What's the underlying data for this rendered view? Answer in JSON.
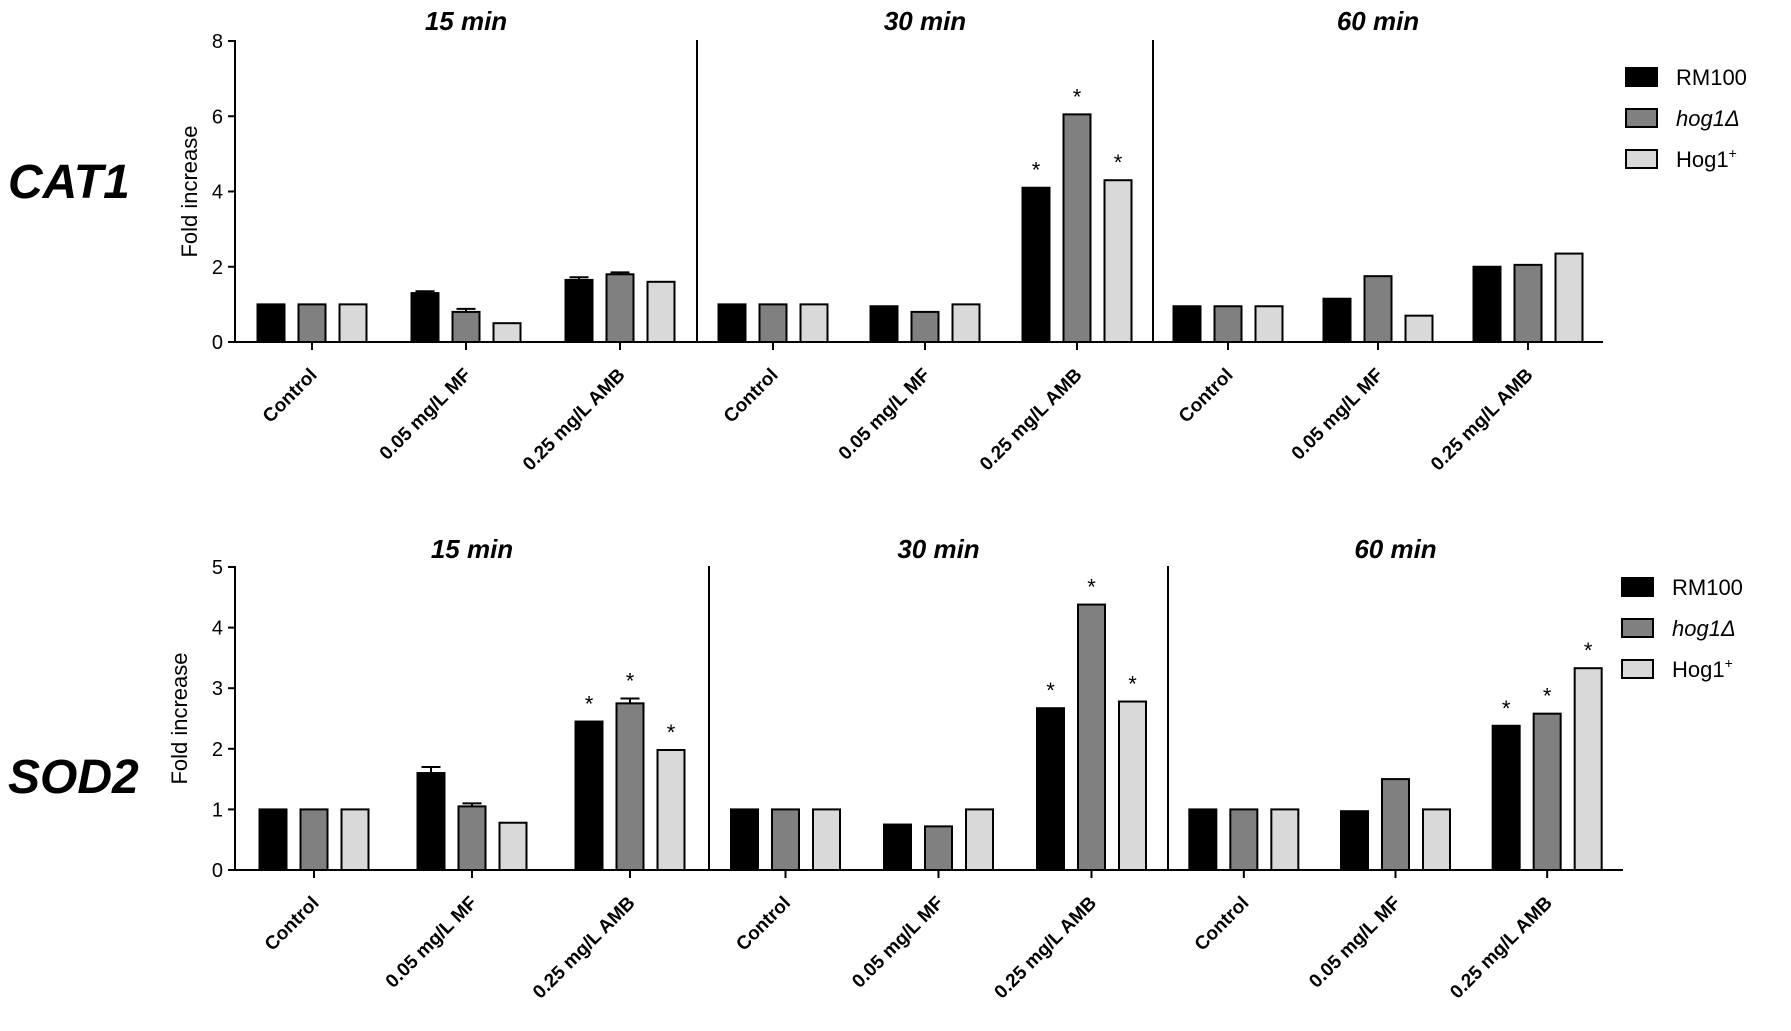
{
  "legend": [
    {
      "name": "RM100",
      "italic": false,
      "sup": "",
      "color": "#000000"
    },
    {
      "name": "hog1Δ",
      "italic": true,
      "sup": "",
      "color": "#808080"
    },
    {
      "name": "Hog1",
      "italic": false,
      "sup": "+",
      "color": "#d9d9d9"
    }
  ],
  "chart_data": [
    {
      "type": "bar",
      "gene": "CAT1",
      "ylabel": "Fold increase",
      "ylim": [
        0,
        8
      ],
      "yticks": [
        0,
        2,
        4,
        6,
        8
      ],
      "categories": [
        "Control",
        "0.05 mg/L MF",
        "0.25 mg/L AMB"
      ],
      "panels": [
        {
          "title": "15 min",
          "series": [
            {
              "name": "RM100",
              "values": [
                1.0,
                1.3,
                1.65
              ],
              "errors": [
                0,
                0.05,
                0.07
              ],
              "sig": [
                false,
                false,
                false
              ]
            },
            {
              "name": "hog1Δ",
              "values": [
                1.0,
                0.8,
                1.8
              ],
              "errors": [
                0,
                0.08,
                0.05
              ],
              "sig": [
                false,
                false,
                false
              ]
            },
            {
              "name": "Hog1+",
              "values": [
                1.0,
                0.5,
                1.6
              ],
              "errors": [
                0,
                0,
                0
              ],
              "sig": [
                false,
                false,
                false
              ]
            }
          ]
        },
        {
          "title": "30 min",
          "series": [
            {
              "name": "RM100",
              "values": [
                1.0,
                0.95,
                4.1
              ],
              "errors": [
                0,
                0,
                0
              ],
              "sig": [
                false,
                false,
                true
              ]
            },
            {
              "name": "hog1Δ",
              "values": [
                1.0,
                0.8,
                6.05
              ],
              "errors": [
                0,
                0,
                0
              ],
              "sig": [
                false,
                false,
                true
              ]
            },
            {
              "name": "Hog1+",
              "values": [
                1.0,
                1.0,
                4.3
              ],
              "errors": [
                0,
                0,
                0
              ],
              "sig": [
                false,
                false,
                true
              ]
            }
          ]
        },
        {
          "title": "60 min",
          "series": [
            {
              "name": "RM100",
              "values": [
                0.95,
                1.15,
                2.0
              ],
              "errors": [
                0,
                0,
                0
              ],
              "sig": [
                false,
                false,
                false
              ]
            },
            {
              "name": "hog1Δ",
              "values": [
                0.95,
                1.75,
                2.05
              ],
              "errors": [
                0,
                0,
                0
              ],
              "sig": [
                false,
                false,
                false
              ]
            },
            {
              "name": "Hog1+",
              "values": [
                0.95,
                0.7,
                2.35
              ],
              "errors": [
                0,
                0,
                0
              ],
              "sig": [
                false,
                false,
                false
              ]
            }
          ]
        }
      ]
    },
    {
      "type": "bar",
      "gene": "SOD2",
      "ylabel": "Fold increase",
      "ylim": [
        0,
        5
      ],
      "yticks": [
        0,
        1,
        2,
        3,
        4,
        5
      ],
      "categories": [
        "Control",
        "0.05 mg/L MF",
        "0.25 mg/L AMB"
      ],
      "panels": [
        {
          "title": "15 min",
          "series": [
            {
              "name": "RM100",
              "values": [
                1.0,
                1.6,
                2.45
              ],
              "errors": [
                0,
                0.1,
                0
              ],
              "sig": [
                false,
                false,
                true
              ]
            },
            {
              "name": "hog1Δ",
              "values": [
                1.0,
                1.05,
                2.75
              ],
              "errors": [
                0,
                0.05,
                0.08
              ],
              "sig": [
                false,
                false,
                true
              ]
            },
            {
              "name": "Hog1+",
              "values": [
                1.0,
                0.78,
                1.98
              ],
              "errors": [
                0,
                0,
                0
              ],
              "sig": [
                false,
                false,
                true
              ]
            }
          ]
        },
        {
          "title": "30 min",
          "series": [
            {
              "name": "RM100",
              "values": [
                1.0,
                0.75,
                2.67
              ],
              "errors": [
                0,
                0,
                0
              ],
              "sig": [
                false,
                false,
                true
              ]
            },
            {
              "name": "hog1Δ",
              "values": [
                1.0,
                0.72,
                4.38
              ],
              "errors": [
                0,
                0,
                0
              ],
              "sig": [
                false,
                false,
                true
              ]
            },
            {
              "name": "Hog1+",
              "values": [
                1.0,
                1.0,
                2.78
              ],
              "errors": [
                0,
                0,
                0
              ],
              "sig": [
                false,
                false,
                true
              ]
            }
          ]
        },
        {
          "title": "60 min",
          "series": [
            {
              "name": "RM100",
              "values": [
                1.0,
                0.97,
                2.38
              ],
              "errors": [
                0,
                0,
                0
              ],
              "sig": [
                false,
                false,
                true
              ]
            },
            {
              "name": "hog1Δ",
              "values": [
                1.0,
                1.5,
                2.58
              ],
              "errors": [
                0,
                0,
                0
              ],
              "sig": [
                false,
                false,
                true
              ]
            },
            {
              "name": "Hog1+",
              "values": [
                1.0,
                1.0,
                3.33
              ],
              "errors": [
                0,
                0,
                0
              ],
              "sig": [
                false,
                false,
                true
              ]
            }
          ]
        }
      ]
    }
  ]
}
